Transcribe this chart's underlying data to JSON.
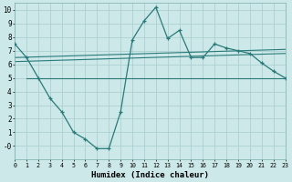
{
  "x": [
    0,
    1,
    2,
    3,
    4,
    5,
    6,
    7,
    8,
    9,
    10,
    11,
    12,
    13,
    14,
    15,
    16,
    17,
    18,
    19,
    20,
    21,
    22,
    23
  ],
  "y_main": [
    7.5,
    6.5,
    5.0,
    3.5,
    2.5,
    1.0,
    0.5,
    -0.2,
    -0.2,
    2.5,
    7.8,
    9.2,
    10.2,
    7.9,
    8.5,
    6.5,
    6.5,
    7.5,
    7.2,
    7.0,
    6.8,
    6.1,
    5.5,
    5.0
  ],
  "y_trend1_x": [
    0,
    23
  ],
  "y_trend1_y": [
    6.5,
    7.1
  ],
  "y_trend2_x": [
    0,
    23
  ],
  "y_trend2_y": [
    6.2,
    6.8
  ],
  "y_trend3_x": [
    1,
    23
  ],
  "y_trend3_y": [
    5.0,
    5.0
  ],
  "xlabel": "Humidex (Indice chaleur)",
  "color_main": "#2a7a7a",
  "bg_color": "#cce8e8",
  "grid_color": "#a8cccc",
  "ylim": [
    -1,
    10.5
  ],
  "xlim": [
    0,
    23
  ],
  "yticks": [
    0,
    1,
    2,
    3,
    4,
    5,
    6,
    7,
    8,
    9,
    10
  ],
  "ytick_labels": [
    "-0",
    "1",
    "2",
    "3",
    "4",
    "5",
    "6",
    "7",
    "8",
    "9",
    "10"
  ],
  "xticks": [
    0,
    1,
    2,
    3,
    4,
    5,
    6,
    7,
    8,
    9,
    10,
    11,
    12,
    13,
    14,
    15,
    16,
    17,
    18,
    19,
    20,
    21,
    22,
    23
  ],
  "xtick_labels": [
    "0",
    "1",
    "2",
    "3",
    "4",
    "5",
    "6",
    "7",
    "8",
    "9",
    "10",
    "11",
    "12",
    "13",
    "14",
    "15",
    "16",
    "17",
    "18",
    "19",
    "20",
    "21",
    "22",
    "23"
  ]
}
